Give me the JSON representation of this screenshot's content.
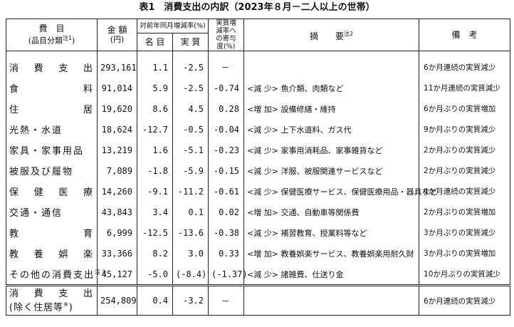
{
  "title": "表1　消費支出の内訳（2023年８月－二人以上の世帯）",
  "headers": {
    "item": "費　目",
    "item_sub": "(品目分類",
    "item_note": "注1",
    "item_close": ")",
    "amount": "金 額",
    "amount_unit": "(円)",
    "yoy": "対前年同月増減率(%)",
    "nominal": "名 目",
    "real": "実 質",
    "contrib": "実質増減率への寄与度(%)",
    "summary": "摘　　要",
    "summary_note": "注2",
    "remarks": "備　考"
  },
  "rows": [
    {
      "name": "消費支出",
      "amount": "293,161",
      "nominal": "1.1",
      "real": "-2.5",
      "contrib": "－",
      "note": "",
      "remark": "6か月連続の実質減少"
    },
    {
      "name": "食料",
      "amount": "91,014",
      "nominal": "5.9",
      "real": "-2.5",
      "contrib": "-0.74",
      "note": "<減 少> 魚介類、肉類など",
      "remark": "11か月連続の実質減少"
    },
    {
      "name": "住居",
      "amount": "19,620",
      "nominal": "8.6",
      "real": "4.5",
      "contrib": "0.28",
      "note": "<増 加> 設備修繕・維持",
      "remark": "6か月ぶりの実質増加"
    },
    {
      "name": "光熱・水道",
      "amount": "18,624",
      "nominal": "-12.7",
      "real": "-0.5",
      "contrib": "-0.04",
      "note": "<減 少> 上下水道料、ガス代",
      "remark": "9か月ぶりの実質減少"
    },
    {
      "name": "家具・家事用品",
      "amount": "13,219",
      "nominal": "1.6",
      "real": "-5.1",
      "contrib": "-0.23",
      "note": "<減 少> 家事用消耗品、家事雑貨など",
      "remark": "2か月ぶりの実質減少"
    },
    {
      "name": "被服及び履物",
      "amount": "7,089",
      "nominal": "-1.8",
      "real": "-5.9",
      "contrib": "-0.15",
      "note": "<減 少> 洋服、被服関連サービスなど",
      "remark": "2か月ぶりの実質減少"
    },
    {
      "name": "保健医療",
      "amount": "14,260",
      "nominal": "-9.1",
      "real": "-11.2",
      "contrib": "-0.61",
      "note": "<減 少> 保健医療サービス、保健医療用品・器具など",
      "remark": "4か月連続の実質減少"
    },
    {
      "name": "交通・通信",
      "amount": "43,843",
      "nominal": "3.4",
      "real": "0.1",
      "contrib": "0.02",
      "note": "<増 加> 交通、自動車等関係費",
      "remark": "2か月ぶりの実質増加"
    },
    {
      "name": "教育",
      "amount": "6,999",
      "nominal": "-12.5",
      "real": "-13.6",
      "contrib": "-0.38",
      "note": "<減 少> 補習教育、授業料等など",
      "remark": "3か月ぶりの実質減少"
    },
    {
      "name": "教養娯楽",
      "amount": "33,366",
      "nominal": "8.2",
      "real": "3.0",
      "contrib": "0.33",
      "note": "<増 加> 教養娯楽サービス、教養娯楽用耐久財",
      "remark": "3か月ぶりの実質増加"
    },
    {
      "name": "その他の消費支出",
      "name_note": "注3",
      "amount": "45,127",
      "nominal": "-5.0",
      "real": "(-8.4)",
      "contrib": "(-1.37)",
      "note": "<減 少> 諸雑費、仕送り金",
      "remark": "10か月ぶりの実質減少"
    }
  ],
  "footer_row": {
    "name1": "消費支出",
    "name2": "(除く住居等",
    "name2_note": "※",
    "name2_close": ")",
    "amount": "254,809",
    "nominal": "0.4",
    "real": "-3.2",
    "contrib": "－",
    "note": "",
    "remark": "6か月連続の実質減少"
  }
}
